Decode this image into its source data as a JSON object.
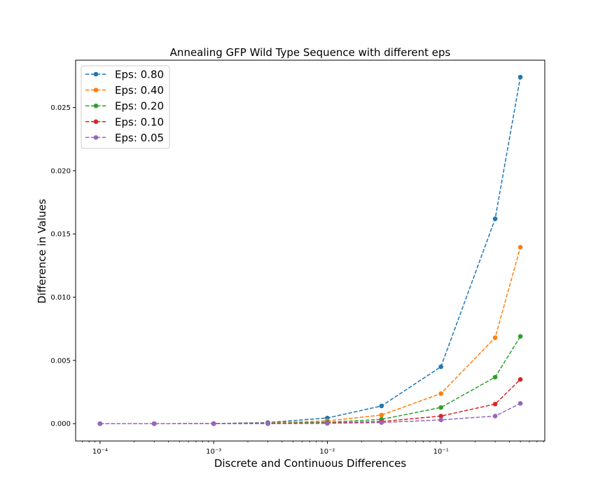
{
  "chart_data": {
    "type": "line",
    "title": "Annealing GFP Wild Type Sequence with different eps",
    "xlabel": "Discrete and Continuous Differences",
    "ylabel": "Difference in Values",
    "x_scale": "log",
    "x": [
      0.0001,
      0.0003,
      0.001,
      0.003,
      0.01,
      0.03,
      0.1,
      0.3,
      0.5
    ],
    "xlim": [
      6.1e-05,
      0.82
    ],
    "ylim": [
      -0.00137,
      0.02874
    ],
    "x_ticks": [
      {
        "value": 0.0001,
        "label": "10⁻⁴"
      },
      {
        "value": 0.001,
        "label": "10⁻³"
      },
      {
        "value": 0.01,
        "label": "10⁻²"
      },
      {
        "value": 0.1,
        "label": "10⁻¹"
      }
    ],
    "y_ticks": [
      {
        "value": 0.0,
        "label": "0.000"
      },
      {
        "value": 0.005,
        "label": "0.005"
      },
      {
        "value": 0.01,
        "label": "0.010"
      },
      {
        "value": 0.015,
        "label": "0.015"
      },
      {
        "value": 0.02,
        "label": "0.020"
      },
      {
        "value": 0.025,
        "label": "0.025"
      }
    ],
    "grid": false,
    "legend_position": "top-left",
    "series": [
      {
        "name": "Eps: 0.80",
        "color": "#1f77b4",
        "values": [
          0.0,
          0.0,
          1e-05,
          9e-05,
          0.00045,
          0.0014,
          0.0045,
          0.0162,
          0.0274
        ]
      },
      {
        "name": "Eps: 0.40",
        "color": "#ff7f0e",
        "values": [
          0.0,
          0.0,
          1e-05,
          5e-05,
          0.00022,
          0.00068,
          0.00238,
          0.0068,
          0.01395
        ]
      },
      {
        "name": "Eps: 0.20",
        "color": "#2ca02c",
        "values": [
          0.0,
          0.0,
          0.0,
          3e-05,
          0.00011,
          0.00034,
          0.00128,
          0.00368,
          0.0069
        ]
      },
      {
        "name": "Eps: 0.10",
        "color": "#d62728",
        "values": [
          0.0,
          0.0,
          0.0,
          1e-05,
          5e-05,
          0.00017,
          0.0006,
          0.00155,
          0.0035
        ]
      },
      {
        "name": "Eps: 0.05",
        "color": "#9467bd",
        "values": [
          0.0,
          0.0,
          0.0,
          0.0,
          2e-05,
          9e-05,
          0.0003,
          0.0006,
          0.0016
        ]
      }
    ]
  }
}
